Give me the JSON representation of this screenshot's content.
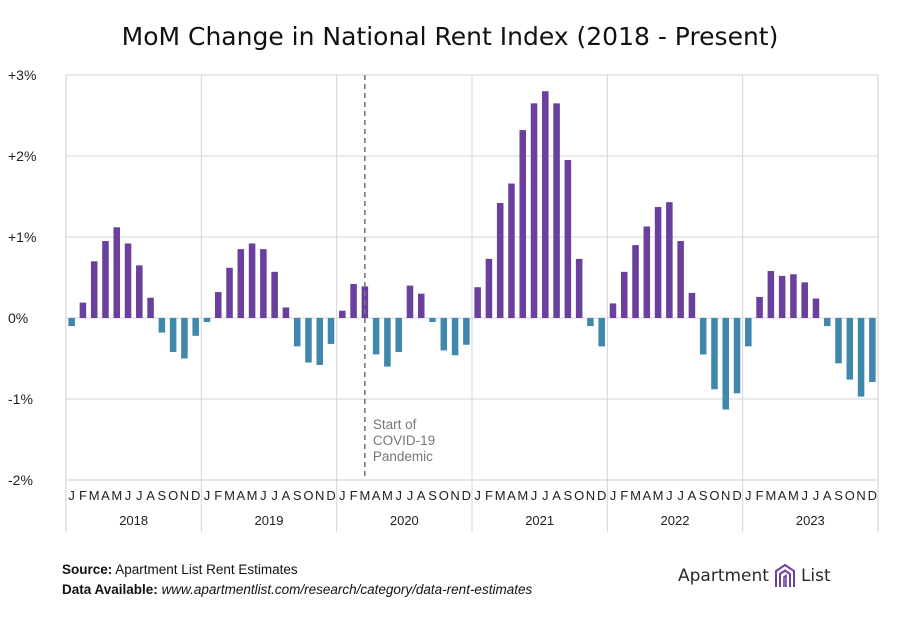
{
  "page": {
    "title": "MoM Change in National Rent Index (2018 - Present)"
  },
  "footer": {
    "source_label": "Source:",
    "source_text": "Apartment List Rent Estimates",
    "data_label": "Data Available:",
    "data_text": "www.apartmentlist.com/research/category/data-rent-estimates"
  },
  "logo": {
    "left_word": "Apartment",
    "right_word": "List",
    "icon": "apartment-list-building-icon"
  },
  "chart_data": {
    "type": "bar",
    "title": "MoM Change in National Rent Index (2018 - Present)",
    "ylim": [
      -2,
      3
    ],
    "yticks": [
      3,
      2,
      1,
      0,
      -1,
      -2
    ],
    "ytick_labels": [
      "+3%",
      "+2%",
      "+1%",
      "0%",
      "-1%",
      "-2%"
    ],
    "grid": true,
    "colors": {
      "positive": "#6a3f9e",
      "negative": "#3f87ad",
      "annotation": "#777777"
    },
    "years": [
      {
        "label": "2018",
        "months": [
          "J",
          "F",
          "M",
          "A",
          "M",
          "J",
          "J",
          "A",
          "S",
          "O",
          "N",
          "D"
        ]
      },
      {
        "label": "2019",
        "months": [
          "J",
          "F",
          "M",
          "A",
          "M",
          "J",
          "J",
          "A",
          "S",
          "O",
          "N",
          "D"
        ]
      },
      {
        "label": "2020",
        "months": [
          "J",
          "F",
          "M",
          "A",
          "M",
          "J",
          "J",
          "A",
          "S",
          "O",
          "N",
          "D"
        ]
      },
      {
        "label": "2021",
        "months": [
          "J",
          "F",
          "M",
          "A",
          "M",
          "J",
          "J",
          "A",
          "S",
          "O",
          "N",
          "D"
        ]
      },
      {
        "label": "2022",
        "months": [
          "J",
          "F",
          "M",
          "A",
          "M",
          "J",
          "J",
          "A",
          "S",
          "O",
          "N",
          "D"
        ]
      },
      {
        "label": "2023",
        "months": [
          "J",
          "F",
          "M",
          "A",
          "M",
          "J",
          "J",
          "A",
          "S",
          "O",
          "N",
          "D"
        ]
      }
    ],
    "values": [
      -0.1,
      0.19,
      0.7,
      0.95,
      1.12,
      0.92,
      0.65,
      0.25,
      -0.18,
      -0.42,
      -0.5,
      -0.22,
      -0.05,
      0.32,
      0.62,
      0.85,
      0.92,
      0.85,
      0.57,
      0.13,
      -0.35,
      -0.55,
      -0.58,
      -0.32,
      0.09,
      0.42,
      0.39,
      -0.45,
      -0.6,
      -0.42,
      0.4,
      0.3,
      -0.05,
      -0.4,
      -0.46,
      -0.33,
      0.38,
      0.73,
      1.42,
      1.66,
      2.32,
      2.65,
      2.8,
      2.65,
      1.95,
      0.73,
      -0.1,
      -0.35,
      0.18,
      0.57,
      0.9,
      1.13,
      1.37,
      1.43,
      0.95,
      0.31,
      -0.45,
      -0.88,
      -1.13,
      -0.93,
      -0.35,
      0.26,
      0.58,
      0.52,
      0.54,
      0.44,
      0.24,
      -0.1,
      -0.56,
      -0.76,
      -0.97,
      -0.79
    ],
    "annotation": {
      "lines": [
        "Start of",
        "COVID-19",
        "Pandemic"
      ],
      "at_index": 26.5
    }
  }
}
